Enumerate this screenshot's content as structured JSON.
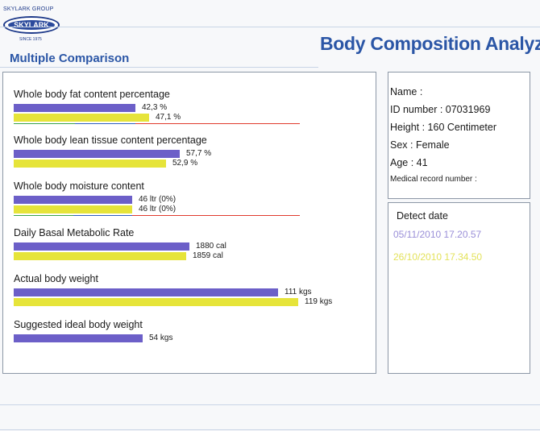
{
  "brand": {
    "arc_text": "SKYLARK GROUP",
    "name": "SKYLARK",
    "since": "SINCE 1975"
  },
  "app_title": "Body Composition Analyzer",
  "section_title": "Multiple Comparison",
  "colors": {
    "series_a": "#6c5fc8",
    "series_b": "#e6e43a",
    "title": "#2b56a6"
  },
  "metrics": [
    {
      "label": "Whole body fat content percentage",
      "a_value": "42,3 %",
      "b_value": "47,1 %",
      "a_fraction": 0.36,
      "b_fraction": 0.4,
      "ref": true
    },
    {
      "label": "Whole body lean tissue content percentage",
      "a_value": "57,7 %",
      "b_value": "52,9 %",
      "a_fraction": 0.49,
      "b_fraction": 0.45,
      "ref": false
    },
    {
      "label": "Whole body moisture content",
      "a_value": "46 ltr (0%)",
      "b_value": "46 ltr (0%)",
      "a_fraction": 0.35,
      "b_fraction": 0.35,
      "ref": true
    },
    {
      "label": "Daily Basal Metabolic Rate",
      "a_value": "1880 cal",
      "b_value": "1859 cal",
      "a_fraction": 0.52,
      "b_fraction": 0.51,
      "ref": false
    },
    {
      "label": "Actual body weight",
      "a_value": "111 kgs",
      "b_value": "119 kgs",
      "a_fraction": 0.78,
      "b_fraction": 0.84,
      "ref": false
    },
    {
      "label": "Suggested ideal body weight",
      "a_value": "54 kgs",
      "b_value": null,
      "a_fraction": 0.38,
      "b_fraction": null,
      "ref": false
    }
  ],
  "patient": {
    "name": "Name :",
    "id": "ID number : 07031969",
    "height": "Height : 160 Centimeter",
    "sex": "Sex : Female",
    "age": "Age : 41",
    "record": "Medical record number :"
  },
  "detect": {
    "label": "Detect date",
    "dates": [
      "05/11/2010 17.20.57",
      "26/10/2010 17.34.50"
    ]
  }
}
